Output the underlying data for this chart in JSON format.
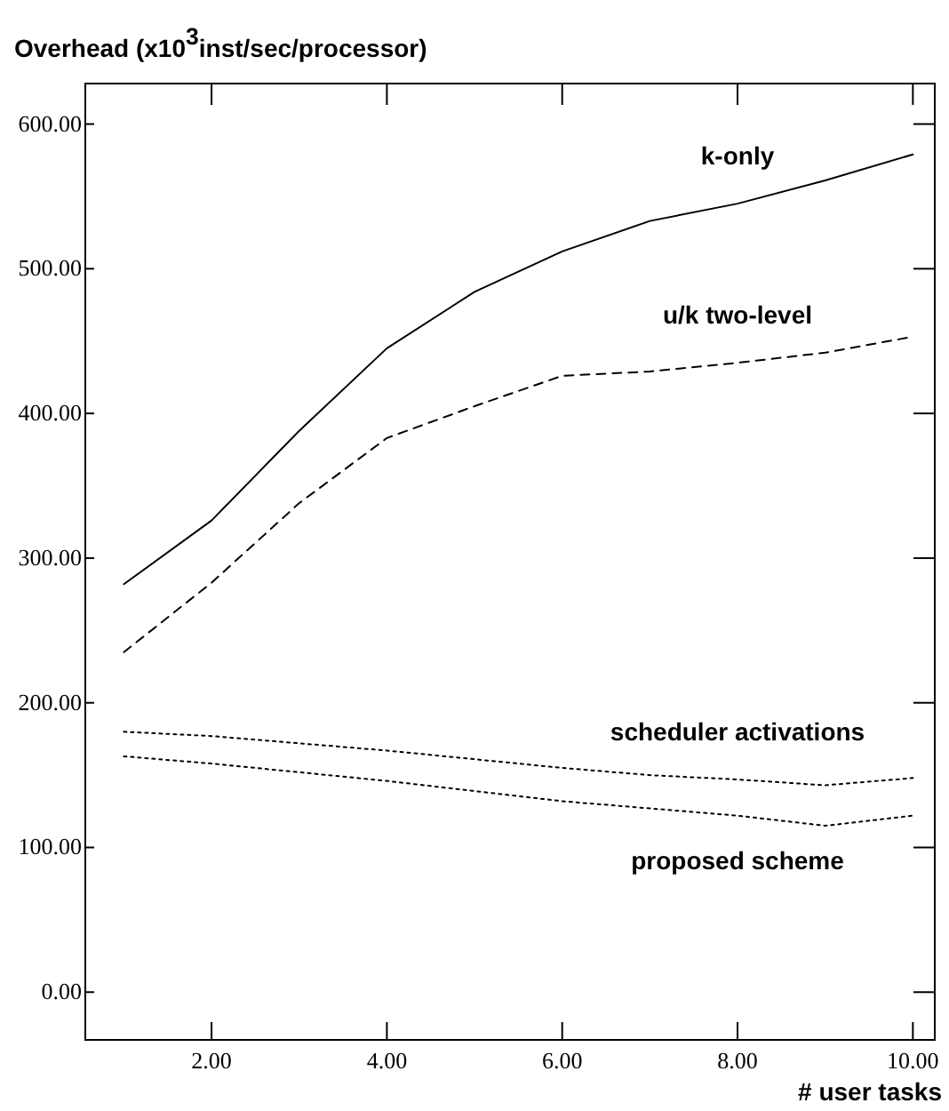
{
  "chart_data": {
    "type": "line",
    "ylabel": "Overhead (x10$^{3}$inst/sec/processor)",
    "xlabel": "# user tasks",
    "x": [
      1,
      2,
      3,
      4,
      5,
      6,
      7,
      8,
      9,
      10
    ],
    "series": [
      {
        "name": "k-only",
        "color": "#000000",
        "line_style": "solid",
        "values": [
          282,
          326,
          388,
          445,
          484,
          512,
          533,
          545,
          561,
          579
        ]
      },
      {
        "name": "u/k two-level",
        "color": "#000000",
        "line_style": "dashed",
        "values": [
          235,
          283,
          338,
          383,
          405,
          426,
          429,
          435,
          442,
          453
        ]
      },
      {
        "name": "scheduler activations",
        "color": "#000000",
        "line_style": "dotted",
        "values": [
          180,
          177,
          172,
          167,
          161,
          155,
          150,
          147,
          143,
          148
        ]
      },
      {
        "name": "proposed scheme",
        "color": "#000000",
        "line_style": "dotted",
        "values": [
          163,
          158,
          152,
          146,
          139,
          132,
          127,
          122,
          115,
          122
        ]
      }
    ],
    "xlim": [
      0.56,
      10.25
    ],
    "ylim": [
      -33,
      628
    ],
    "xticks": [
      {
        "value": 2,
        "label": "2.00"
      },
      {
        "value": 4,
        "label": "4.00"
      },
      {
        "value": 6,
        "label": "6.00"
      },
      {
        "value": 8,
        "label": "8.00"
      },
      {
        "value": 10,
        "label": "10.00"
      }
    ],
    "yticks": [
      {
        "value": 0,
        "label": "0.00"
      },
      {
        "value": 100,
        "label": "100.00"
      },
      {
        "value": 200,
        "label": "200.00"
      },
      {
        "value": 300,
        "label": "300.00"
      },
      {
        "value": 400,
        "label": "400.00"
      },
      {
        "value": 500,
        "label": "500.00"
      },
      {
        "value": 600,
        "label": "600.00"
      }
    ],
    "grid": false
  }
}
